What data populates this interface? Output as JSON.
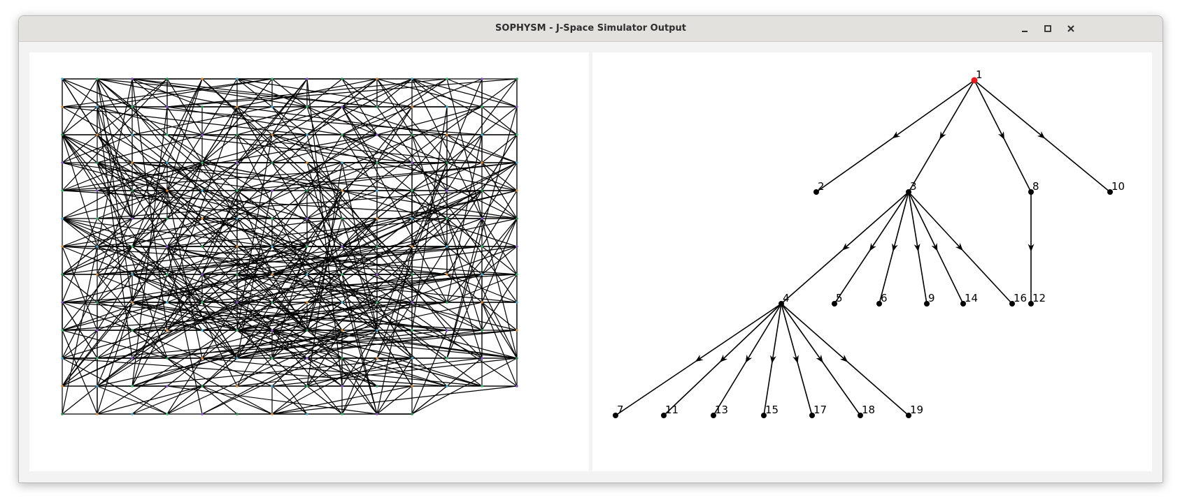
{
  "window": {
    "title": "SOPHYSM - J-Space Simulator Output",
    "controls": [
      {
        "name": "minimize-button",
        "icon": "minimize-icon"
      },
      {
        "name": "maximize-button",
        "icon": "maximize-icon"
      },
      {
        "name": "close-button",
        "icon": "close-icon"
      }
    ]
  },
  "colors": {
    "titlebar": "#e3e1dd",
    "root_node": "#e41a1c",
    "node": "#000000",
    "edge": "#000000"
  },
  "tree": {
    "root": "1",
    "nodes": [
      {
        "id": "1",
        "label": "1",
        "root": true
      },
      {
        "id": "2",
        "label": "2"
      },
      {
        "id": "3",
        "label": "3"
      },
      {
        "id": "8",
        "label": "8"
      },
      {
        "id": "10",
        "label": "10"
      },
      {
        "id": "4",
        "label": "4"
      },
      {
        "id": "5",
        "label": "5"
      },
      {
        "id": "6",
        "label": "6"
      },
      {
        "id": "9",
        "label": "9"
      },
      {
        "id": "14",
        "label": "14"
      },
      {
        "id": "16",
        "label": "16"
      },
      {
        "id": "12",
        "label": "12"
      },
      {
        "id": "7",
        "label": "7"
      },
      {
        "id": "11",
        "label": "11"
      },
      {
        "id": "13",
        "label": "13"
      },
      {
        "id": "15",
        "label": "15"
      },
      {
        "id": "17",
        "label": "17"
      },
      {
        "id": "18",
        "label": "18"
      },
      {
        "id": "19",
        "label": "19"
      }
    ],
    "edges": [
      [
        "1",
        "2"
      ],
      [
        "1",
        "3"
      ],
      [
        "1",
        "8"
      ],
      [
        "1",
        "10"
      ],
      [
        "3",
        "4"
      ],
      [
        "3",
        "5"
      ],
      [
        "3",
        "6"
      ],
      [
        "3",
        "9"
      ],
      [
        "3",
        "14"
      ],
      [
        "3",
        "16"
      ],
      [
        "8",
        "12"
      ],
      [
        "4",
        "7"
      ],
      [
        "4",
        "11"
      ],
      [
        "4",
        "13"
      ],
      [
        "4",
        "15"
      ],
      [
        "4",
        "17"
      ],
      [
        "4",
        "18"
      ],
      [
        "4",
        "19"
      ]
    ]
  },
  "lattice": {
    "grid_columns": 14,
    "grid_rows": 13,
    "point_colors": [
      "#4aa6c8",
      "#3cb371",
      "#8a4fbf",
      "#2e8b57",
      "#d08a3a"
    ]
  }
}
